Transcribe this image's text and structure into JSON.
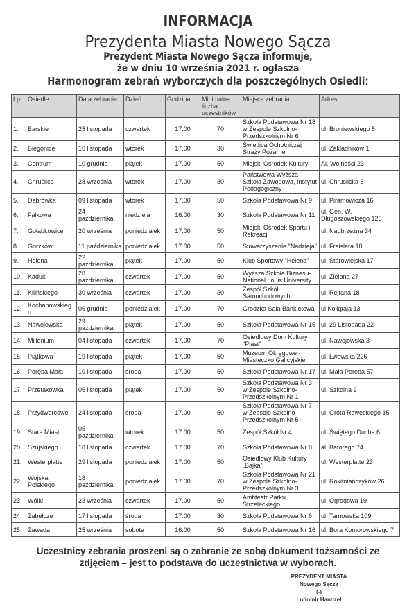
{
  "header": {
    "title": "INFORMACJA",
    "subtitle": "Prezydenta Miasta Nowego Sącza",
    "line1": "Prezydent Miasta Nowego Sącza informuje,",
    "line2": "że w dniu 10 września 2021 r. ogłasza",
    "line3": "Harmonogram zebrań wyborczych dla poszczególnych Osiedli:"
  },
  "table": {
    "columns": [
      "Lp.",
      "Osiedle",
      "Data zebrania",
      "Dzień",
      "Godzina",
      "Minimalna liczba uczestników",
      "Miejsce zebrania",
      "Adres"
    ],
    "rows": [
      [
        "1.",
        "Barskie",
        "25 listopada",
        "czwartek",
        "17.00",
        "70",
        "Szkoła Podstawowa Nr 18 w Zespole Szkolno-Przedszkolnym Nr 6",
        "ul. Broniewskiego 5"
      ],
      [
        "2.",
        "Biegonice",
        "16 listopada",
        "wtorek",
        "17.00",
        "30",
        "Świetlica Ochotniczej Straży Pożarnej",
        "ul. Zakładników 1"
      ],
      [
        "3.",
        "Centrum",
        "10 grudnia",
        "piątek",
        "17.00",
        "50",
        "Miejski Ośrodek Kultury",
        "Al. Wolności 23"
      ],
      [
        "4.",
        "Chruślice",
        "28 września",
        "wtorek",
        "17.00",
        "30",
        "Państwowa Wyższa Szkoła Zawodowa, Instytut Pedagogiczny",
        "ul. Chruślicka 6"
      ],
      [
        "5.",
        "Dąbrówka",
        "09 listopada",
        "wtorek",
        "17.00",
        "50",
        "Szkoła Podstawowa Nr 9",
        "ul. Piramowicza 16"
      ],
      [
        "6.",
        "Falkowa",
        "24 października",
        "niedziela",
        "16.00",
        "30",
        "Szkoła Podstawowa Nr 11",
        "ul. Gen. W. Długoszowskiego 126"
      ],
      [
        "7.",
        "Gołąbkowice",
        "20 września",
        "poniedziałek",
        "17.00",
        "50",
        "Miejski Ośrodek Sportu i Rekreacji",
        "ul. Nadbrzeżna 34"
      ],
      [
        "8.",
        "Gorzków",
        "11 października",
        "poniedziałek",
        "17.00",
        "50",
        "Stowarzyszenie \"Nadzieja\"",
        "ul. Freislera 10"
      ],
      [
        "9.",
        "Helena",
        "22 października",
        "piątek",
        "17.00",
        "50",
        "Klub Sportowy \"Helena\"",
        "ul. Starowiejska 17"
      ],
      [
        "10.",
        "Kaduk",
        "28 października",
        "czwartek",
        "17.00",
        "50",
        "Wyższa Szkoła Biznesu-National Louis University",
        "ul. Zielona 27"
      ],
      [
        "11.",
        "Kilińskiego",
        "30 września",
        "czwartek",
        "17.00",
        "30",
        "Zespół Szkół Samochodowych",
        "ul. Rejtana 18"
      ],
      [
        "12.",
        "Kochanowskiego",
        "06 grudnia",
        "poniedziałek",
        "17.00",
        "70",
        "Grodzka Sala Bankietowa",
        "ul Kołłątaja 13"
      ],
      [
        "13.",
        "Nawojowska",
        "29 października",
        "piątek",
        "17.00",
        "50",
        "Szkoła Podstawowa Nr 15",
        "ul. 29 Listopada 22"
      ],
      [
        "14.",
        "Millenium",
        "04 listopada",
        "czwartek",
        "17.00",
        "70",
        "Osiedlowy Dom Kultury \"Piast\"",
        "ul. Nawojowska 3"
      ],
      [
        "15.",
        "Piątkowa",
        "19 listopada",
        "piątek",
        "17.00",
        "50",
        "Muzeum Okręgowe - Miasteczko Galicyjskie",
        "ul. Lwowska 226"
      ],
      [
        "16.",
        "Poręba Mała",
        "10 listopada",
        "środa",
        "17.00",
        "50",
        "Szkoła Podstawowa Nr 17",
        "ul. Mała Poręba 57"
      ],
      [
        "17.",
        "Przetakówka",
        "05 listopada",
        "piątek",
        "17.00",
        "50",
        "Szkoła Podstawowa Nr 3 w Zespole Szkolno-Przedszkolnym Nr 1",
        "ul. Szkolna 9"
      ],
      [
        "18.",
        "Przydworcowe",
        "24 listopada",
        "środa",
        "17.00",
        "50",
        "Szkoła Podstawowa Nr 7 w Zepsole Szkolno-Przedszkolnym Nr 5",
        "ul. Grota Roweckiego 15"
      ],
      [
        "19.",
        "Stare Miasto",
        "05 października",
        "wtorek",
        "17.00",
        "50",
        "Zespół Szkół Nr 4",
        "ul. Świętego Ducha 6"
      ],
      [
        "20.",
        "Szujskiego",
        "18 listopada",
        "czwartek",
        "17.00",
        "70",
        "Szkoła Podstawowa Nr 8",
        "al. Batorego 74"
      ],
      [
        "21.",
        "Westerplatte",
        "29 listopada",
        "poniedziałek",
        "17.00",
        "50",
        "Osiedlowy Klub Kultury „Bajka\"",
        "ul. Westerplatte 23"
      ],
      [
        "22.",
        "Wojska Polskiego",
        "18 października",
        "poniedziałek",
        "17.00",
        "70",
        "Szkoła Podstawowa Nr 21 w Zespole Szkolno-Przedszkolnym Nr 3",
        "ul. Rokitniańczyków 26"
      ],
      [
        "23.",
        "Wólki",
        "23 września",
        "czwartek",
        "17.00",
        "50",
        "Amfiteatr Parku Strzeleckiego",
        "ul. Ogrodowa 19"
      ],
      [
        "24.",
        "Zabełcze",
        "17 listopada",
        "środa",
        "17.00",
        "30",
        "Szkoła Podstawowa Nr 6",
        "ul. Tarnowska 109"
      ],
      [
        "25.",
        "Zawada",
        "25 września",
        "sobota",
        "16.00",
        "50",
        "Szkoła Podstawowa Nr 16",
        "ul. Bora Komorowskiego 7"
      ]
    ]
  },
  "footer": {
    "note1": "Uczestnicy zebrania proszeni są o zabranie ze sobą dokument tożsamości ze",
    "note2": "zdjęciem – jest to podstawa do uczestnictwa w wyborach.",
    "signature": [
      "PREZYDENT MIASTA",
      "Nowego Sącza",
      "(-)",
      "Ludomir Handzel"
    ]
  }
}
